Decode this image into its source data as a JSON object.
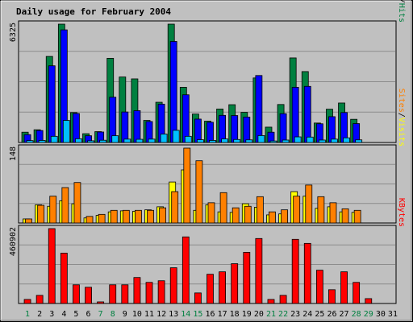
{
  "chart_data": {
    "type": "bar",
    "title": "Daily usage for February 2004",
    "days": [
      "1",
      "2",
      "3",
      "4",
      "5",
      "6",
      "7",
      "8",
      "9",
      "10",
      "11",
      "12",
      "13",
      "14",
      "15",
      "16",
      "17",
      "18",
      "19",
      "20",
      "21",
      "22",
      "23",
      "24",
      "25",
      "26",
      "27",
      "28",
      "29",
      "30",
      "31"
    ],
    "weekend_days": [
      "1",
      "7",
      "8",
      "14",
      "15",
      "21",
      "22",
      "28",
      "29"
    ],
    "colors": {
      "background": "#c0c0c0",
      "plot": "#c0c0c0",
      "title": "#0000ff",
      "weekday_tick": "#000000",
      "weekend_tick": "#008040",
      "hits": "#008040",
      "files": "#0000ff",
      "pages": "#00c0ff",
      "visits": "#ffff00",
      "sites": "#ff8000",
      "kbytes": "#ff0000",
      "grid": "#8c8c8c"
    },
    "panels": [
      {
        "max_label": "6325",
        "ymax": 6325,
        "legend": [
          {
            "text": "Pages",
            "color": "#00c0ff"
          },
          {
            "text": "/",
            "color": "#000000"
          },
          {
            "text": "Files",
            "color": "#0000ff"
          },
          {
            "text": "/",
            "color": "#000000"
          },
          {
            "text": "Hits",
            "color": "#008040"
          }
        ],
        "series": [
          {
            "name": "Hits",
            "color": "#008040",
            "values": [
              550,
              680,
              4600,
              6325,
              1600,
              470,
              580,
              4500,
              3500,
              3400,
              1180,
              2150,
              6325,
              2950,
              1520,
              1140,
              1790,
              2020,
              1610,
              3450,
              820,
              2030,
              4520,
              3790,
              1040,
              1780,
              2110,
              1240,
              null,
              null,
              null
            ]
          },
          {
            "name": "Files",
            "color": "#0000ff",
            "values": [
              420,
              640,
              4100,
              6020,
              1550,
              360,
              560,
              2420,
              1630,
              1700,
              1120,
              2050,
              5400,
              2550,
              1250,
              1080,
              1450,
              1440,
              1360,
              3580,
              550,
              1540,
              2950,
              3000,
              1000,
              1380,
              1600,
              1010,
              null,
              null,
              null
            ]
          },
          {
            "name": "Pages",
            "color": "#00c0ff",
            "values": [
              100,
              110,
              330,
              1180,
              200,
              90,
              120,
              360,
              180,
              170,
              180,
              450,
              650,
              330,
              150,
              110,
              190,
              160,
              140,
              370,
              80,
              130,
              300,
              290,
              130,
              180,
              250,
              140,
              null,
              null,
              null
            ]
          }
        ]
      },
      {
        "max_label": "148",
        "ymax": 148,
        "legend": [
          {
            "text": "Sites",
            "color": "#ff8000"
          },
          {
            "text": "/",
            "color": "#000000"
          },
          {
            "text": "Visits",
            "color": "#ffff00"
          }
        ],
        "series": [
          {
            "name": "Visits",
            "color": "#ffff00",
            "values": [
              8,
              36,
              33,
              44,
              38,
              10,
              15,
              22,
              24,
              23,
              26,
              32,
              81,
              105,
              25,
              36,
              22,
              21,
              38,
              31,
              16,
              18,
              62,
              53,
              29,
              32,
              22,
              21,
              null,
              null,
              null
            ]
          },
          {
            "name": "Sites",
            "color": "#ff8000",
            "values": [
              8,
              35,
              53,
              70,
              80,
              13,
              17,
              25,
              25,
              25,
              25,
              30,
              62,
              148,
              123,
              40,
              60,
              30,
              33,
              52,
              22,
              26,
              53,
              75,
              52,
              40,
              28,
              25,
              null,
              null,
              null
            ]
          }
        ]
      },
      {
        "max_label": "460902",
        "ymax": 460902,
        "legend": [
          {
            "text": "KBytes",
            "color": "#ff0000"
          }
        ],
        "series": [
          {
            "name": "KBytes",
            "color": "#ff0000",
            "values": [
              25000,
              50000,
              460902,
              310000,
              115000,
              100000,
              10000,
              115000,
              115000,
              160000,
              130000,
              140000,
              220000,
              410000,
              65000,
              180000,
              195000,
              245000,
              315000,
              400000,
              25000,
              50000,
              395000,
              370000,
              205000,
              85000,
              195000,
              130000,
              30000,
              null,
              null
            ]
          }
        ]
      }
    ]
  }
}
